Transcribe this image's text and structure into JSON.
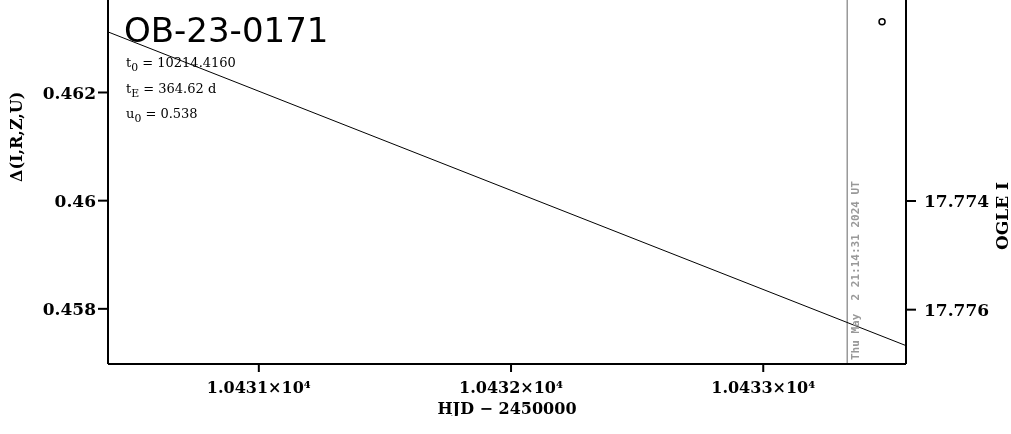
{
  "chart_data": {
    "type": "line",
    "title": "OB-23-0171",
    "xlabel": "HJD − 2450000",
    "ylabel": "Δ(I,R,Z,U)",
    "y2label": "OGLE I",
    "annotations": [
      "t$_{0}$ = 10214.4160",
      "t$_{E}$ = 364.62 d",
      "u$_{0}$ = 0.538",
      {
        "text": "Thu May  2 21:14:31 2024 UT",
        "x": 10433.333
      }
    ],
    "xlim": [
      10430.402,
      10433.566
    ],
    "xticks": [
      {
        "value": 10431,
        "label": "1.0431×10⁴"
      },
      {
        "value": 10432,
        "label": "1.0432×10⁴"
      },
      {
        "value": 10433,
        "label": "1.0433×10⁴"
      }
    ],
    "ylim": [
      0.45698,
      0.46371
    ],
    "yticks": [
      0.458,
      0.46,
      0.462
    ],
    "y2lim": [
      17.777,
      17.7703
    ],
    "y2ticks": [
      17.774,
      17.776
    ],
    "ref_lines": [
      {
        "axis": "x",
        "value": 10433.333,
        "color": "#999999"
      }
    ],
    "series": [
      {
        "color": "#000000",
        "x": [
          10430.402,
          10432,
          10433.566
        ],
        "values": [
          0.46312,
          0.46019,
          0.45732
        ]
      },
      {
        "type": "scatter",
        "axis": "y2",
        "marker": "circle",
        "color": "#000000",
        "x": [
          10433.471
        ],
        "values": [
          17.7707
        ]
      }
    ]
  }
}
